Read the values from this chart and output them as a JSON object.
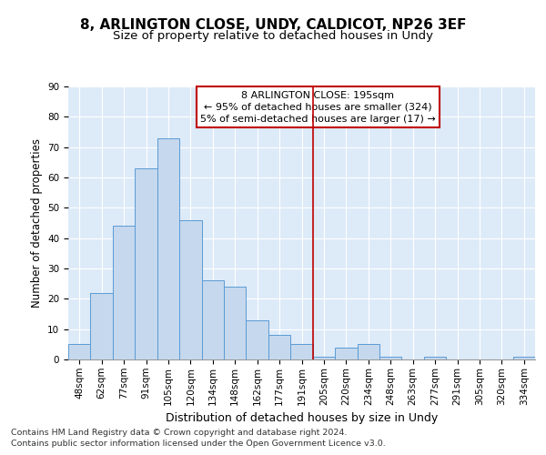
{
  "title1": "8, ARLINGTON CLOSE, UNDY, CALDICOT, NP26 3EF",
  "title2": "Size of property relative to detached houses in Undy",
  "xlabel": "Distribution of detached houses by size in Undy",
  "ylabel": "Number of detached properties",
  "categories": [
    "48sqm",
    "62sqm",
    "77sqm",
    "91sqm",
    "105sqm",
    "120sqm",
    "134sqm",
    "148sqm",
    "162sqm",
    "177sqm",
    "191sqm",
    "205sqm",
    "220sqm",
    "234sqm",
    "248sqm",
    "263sqm",
    "277sqm",
    "291sqm",
    "305sqm",
    "320sqm",
    "334sqm"
  ],
  "values": [
    5,
    22,
    44,
    63,
    73,
    46,
    26,
    24,
    13,
    8,
    5,
    1,
    4,
    5,
    1,
    0,
    1,
    0,
    0,
    0,
    1
  ],
  "bar_color": "#c5d8ed",
  "bar_edge_color": "#5b9bd5",
  "vline_x": 10.5,
  "vline_color": "#c00000",
  "annotation_text": "8 ARLINGTON CLOSE: 195sqm\n← 95% of detached houses are smaller (324)\n5% of semi-detached houses are larger (17) →",
  "annotation_box_color": "#ffffff",
  "annotation_box_edge": "#c00000",
  "ylim": [
    0,
    90
  ],
  "yticks": [
    0,
    10,
    20,
    30,
    40,
    50,
    60,
    70,
    80,
    90
  ],
  "footer1": "Contains HM Land Registry data © Crown copyright and database right 2024.",
  "footer2": "Contains public sector information licensed under the Open Government Licence v3.0.",
  "bg_color": "#ddeaf8",
  "fig_bg_color": "#ffffff",
  "title1_fontsize": 11,
  "title2_fontsize": 9.5,
  "xlabel_fontsize": 9,
  "ylabel_fontsize": 8.5,
  "tick_fontsize": 7.5,
  "footer_fontsize": 6.8,
  "ann_fontsize": 8.0
}
